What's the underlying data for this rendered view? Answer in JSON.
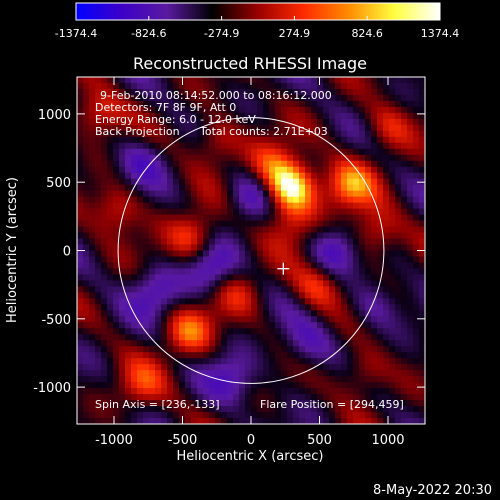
{
  "chart_data": {
    "type": "heatmap",
    "title": "Reconstructed RHESSI Image",
    "xlabel": "Heliocentric X (arcsec)",
    "ylabel": "Heliocentric Y (arcsec)",
    "xlim": [
      -1270,
      1270
    ],
    "ylim": [
      -1270,
      1270
    ],
    "x_ticks": [
      -1000,
      -500,
      0,
      500,
      1000
    ],
    "y_ticks": [
      -1000,
      -500,
      0,
      500,
      1000
    ],
    "colorbar": {
      "min": -1374.4,
      "max": 1374.4,
      "tick_labels": [
        "-1374.4",
        "-824.6",
        "-274.9",
        "274.9",
        "824.6",
        "1374.4"
      ],
      "colors": [
        "#0000ff",
        "#3c00c8",
        "#5a1aa0",
        "#000000",
        "#9a0000",
        "#ff2a00",
        "#ff8c00",
        "#ffff40",
        "#ffffff"
      ]
    },
    "annotations": {
      "time_range": "9-Feb-2010 08:14:52.000 to 08:16:12.000",
      "detectors": "Detectors: 7F 8F 9F, Att 0",
      "energy_range": "Energy Range: 6.0 - 12.0 keV",
      "method": "Back Projection",
      "total_counts": "Total counts: 2.71E+03",
      "spin_axis": "Spin Axis = [236,-133]",
      "flare_position": "Flare Position = [294,459]"
    },
    "solar_limb_radius": 970,
    "spin_axis_xy": [
      236,
      -133
    ],
    "flare_xy": [
      294,
      459
    ],
    "blobs": [
      {
        "x": 294,
        "y": 459,
        "v": 1374
      },
      {
        "x": 720,
        "y": 480,
        "v": 820
      },
      {
        "x": -450,
        "y": -600,
        "v": 760
      },
      {
        "x": -420,
        "y": 100,
        "v": 700
      },
      {
        "x": 900,
        "y": 120,
        "v": 650
      },
      {
        "x": -980,
        "y": 300,
        "v": 600
      },
      {
        "x": 480,
        "y": -260,
        "v": 620
      },
      {
        "x": 140,
        "y": 620,
        "v": 600
      },
      {
        "x": -1120,
        "y": 1000,
        "v": 640
      },
      {
        "x": -250,
        "y": 800,
        "v": 580
      },
      {
        "x": 820,
        "y": -900,
        "v": 560
      },
      {
        "x": -800,
        "y": -1000,
        "v": 540
      },
      {
        "x": 1000,
        "y": 900,
        "v": 520
      },
      {
        "x": -100,
        "y": -300,
        "v": 450
      },
      {
        "x": 300,
        "y": 200,
        "v": 430
      },
      {
        "x": -300,
        "y": -150,
        "v": -700
      },
      {
        "x": 0,
        "y": 400,
        "v": -600
      },
      {
        "x": 600,
        "y": 0,
        "v": -620
      },
      {
        "x": -700,
        "y": -300,
        "v": -560
      },
      {
        "x": -150,
        "y": -950,
        "v": -520
      },
      {
        "x": 400,
        "y": -700,
        "v": -500
      },
      {
        "x": -800,
        "y": 650,
        "v": -480
      },
      {
        "x": 900,
        "y": -400,
        "v": -460
      }
    ]
  },
  "footer": {
    "date": "8-May-2022 20:30"
  }
}
